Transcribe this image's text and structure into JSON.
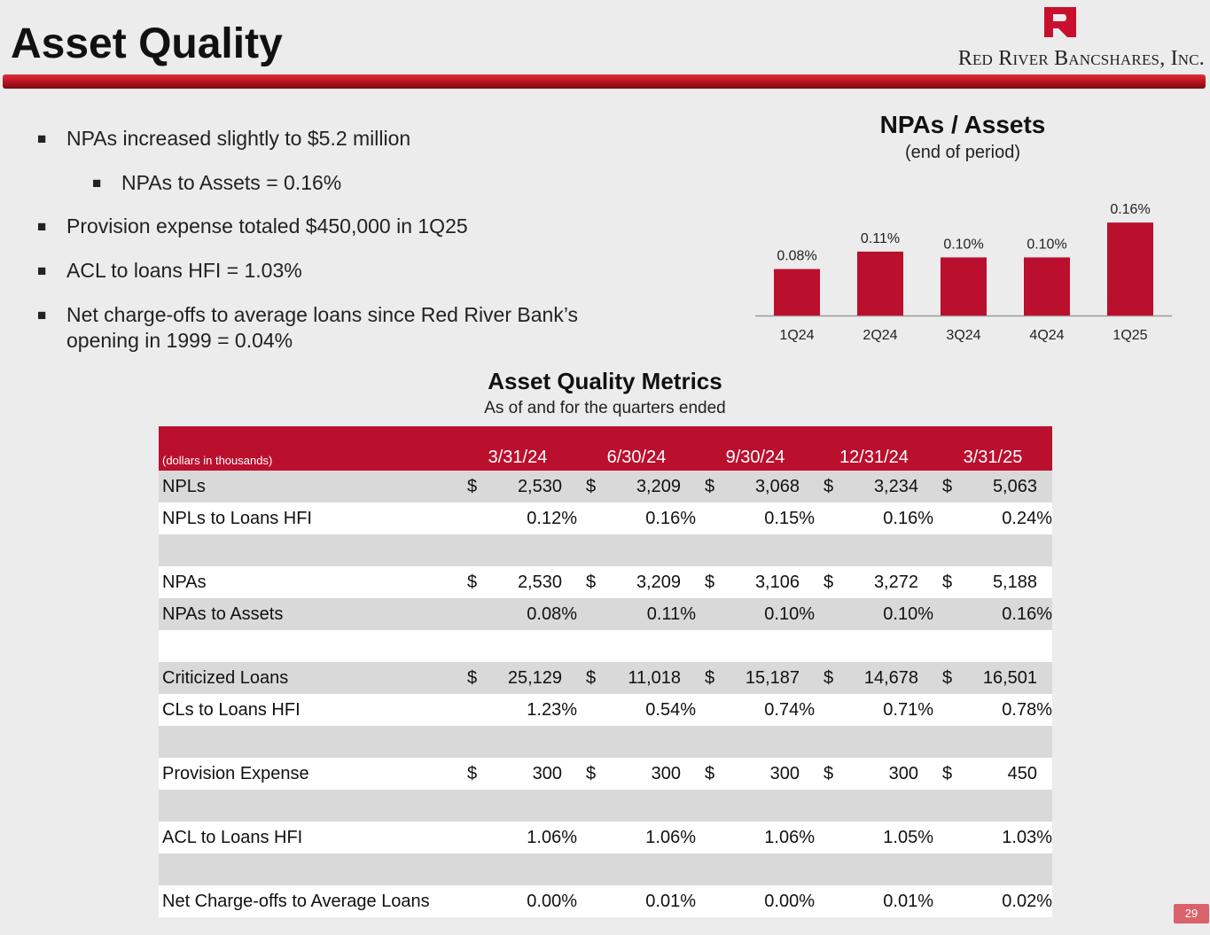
{
  "header": {
    "title": "Asset Quality",
    "company": "Red River Bancshares, Inc.",
    "brand_color": "#bb0f2e"
  },
  "bullets": [
    {
      "marker": "■",
      "text": "NPAs increased slightly to $5.2 million",
      "level": 1
    },
    {
      "marker": "■",
      "text": "NPAs to Assets = 0.16%",
      "level": 2
    },
    {
      "marker": "■",
      "text": "Provision expense totaled $450,000 in 1Q25",
      "level": 1
    },
    {
      "marker": "■",
      "text": "ACL to loans HFI = 1.03%",
      "level": 1
    },
    {
      "marker": "■",
      "text": "Net charge-offs to average loans since Red River Bank’s opening in 1999 = 0.04%",
      "level": 1
    }
  ],
  "chart_data": {
    "type": "bar",
    "title": "NPAs / Assets",
    "subtitle": "(end of period)",
    "categories": [
      "1Q24",
      "2Q24",
      "3Q24",
      "4Q24",
      "1Q25"
    ],
    "values": [
      0.08,
      0.11,
      0.1,
      0.1,
      0.16
    ],
    "data_labels": [
      "0.08%",
      "0.11%",
      "0.10%",
      "0.10%",
      "0.16%"
    ],
    "ylim": [
      0,
      0.18
    ],
    "bar_color": "#bb0f2e",
    "xlabel": "",
    "ylabel": ""
  },
  "table": {
    "title": "Asset Quality Metrics",
    "subtitle": "As of and for the quarters ended",
    "header_label": "(dollars in thousands)",
    "columns": [
      "3/31/24",
      "6/30/24",
      "9/30/24",
      "12/31/24",
      "3/31/25"
    ],
    "rows": [
      {
        "label": "NPLs",
        "kind": "dollar",
        "values": [
          "2,530",
          "3,209",
          "3,068",
          "3,234",
          "5,063"
        ]
      },
      {
        "label": "NPLs to Loans HFI",
        "kind": "pct",
        "values": [
          "0.12%",
          "0.16%",
          "0.15%",
          "0.16%",
          "0.24%"
        ]
      },
      {
        "label": "",
        "kind": "blank",
        "values": []
      },
      {
        "label": "NPAs",
        "kind": "dollar",
        "values": [
          "2,530",
          "3,209",
          "3,106",
          "3,272",
          "5,188"
        ]
      },
      {
        "label": "NPAs to Assets",
        "kind": "pct",
        "values": [
          "0.08%",
          "0.11%",
          "0.10%",
          "0.10%",
          "0.16%"
        ]
      },
      {
        "label": "",
        "kind": "blank",
        "values": []
      },
      {
        "label": "Criticized Loans",
        "kind": "dollar",
        "values": [
          "25,129",
          "11,018",
          "15,187",
          "14,678",
          "16,501"
        ]
      },
      {
        "label": "CLs to Loans HFI",
        "kind": "pct",
        "values": [
          "1.23%",
          "0.54%",
          "0.74%",
          "0.71%",
          "0.78%"
        ]
      },
      {
        "label": "",
        "kind": "blank",
        "values": []
      },
      {
        "label": "Provision Expense",
        "kind": "dollar",
        "values": [
          "300",
          "300",
          "300",
          "300",
          "450"
        ]
      },
      {
        "label": "",
        "kind": "blank",
        "values": []
      },
      {
        "label": "ACL to Loans HFI",
        "kind": "pct",
        "values": [
          "1.06%",
          "1.06%",
          "1.06%",
          "1.05%",
          "1.03%"
        ]
      },
      {
        "label": "",
        "kind": "blank",
        "values": []
      },
      {
        "label": "Net Charge-offs to Average Loans",
        "kind": "pct",
        "values": [
          "0.00%",
          "0.01%",
          "0.00%",
          "0.01%",
          "0.02%"
        ]
      }
    ]
  },
  "footer": {
    "page_number": "29",
    "dollar_sign": "$"
  }
}
